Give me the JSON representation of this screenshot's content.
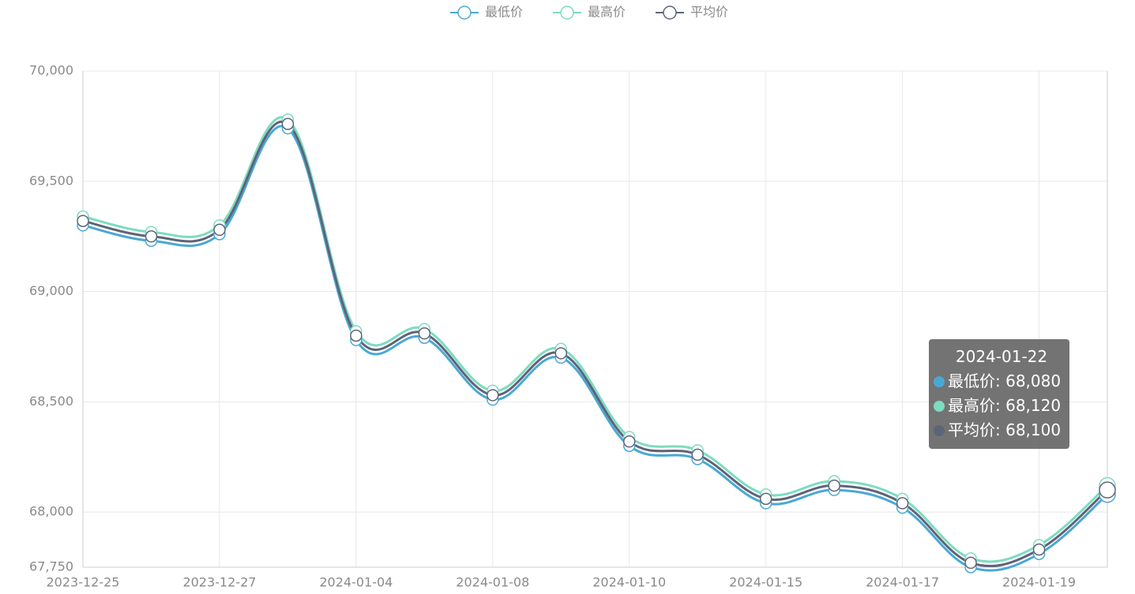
{
  "chart_data": {
    "type": "line",
    "categories": [
      "2023-12-25",
      null,
      "2023-12-27",
      null,
      "2024-01-04",
      null,
      "2024-01-08",
      null,
      "2024-01-10",
      null,
      "2024-01-15",
      null,
      "2024-01-17",
      null,
      "2024-01-19",
      null
    ],
    "series": [
      {
        "name": "最低价",
        "color": "#4aa8d4",
        "values": [
          69300,
          69230,
          69260,
          69740,
          68780,
          68790,
          68510,
          68700,
          68300,
          68240,
          68040,
          68100,
          68020,
          67750,
          67810,
          68080
        ]
      },
      {
        "name": "最高价",
        "color": "#7ddcc0",
        "values": [
          69340,
          69270,
          69300,
          69780,
          68820,
          68830,
          68550,
          68740,
          68340,
          68280,
          68080,
          68140,
          68060,
          67790,
          67850,
          68120
        ]
      },
      {
        "name": "平均价",
        "color": "#5e6478",
        "values": [
          69320,
          69250,
          69280,
          69760,
          68800,
          68810,
          68530,
          68720,
          68320,
          68260,
          68060,
          68120,
          68040,
          67770,
          67830,
          68100
        ]
      }
    ],
    "ylim": [
      67750,
      70000
    ],
    "yticks": [
      {
        "value": 67750,
        "label": "67,750"
      },
      {
        "value": 68000,
        "label": "68,000"
      },
      {
        "value": 68500,
        "label": "68,500"
      },
      {
        "value": 69000,
        "label": "69,000"
      },
      {
        "value": 69500,
        "label": "69,500"
      },
      {
        "value": 70000,
        "label": "70,000"
      }
    ],
    "grid": true,
    "legend": "top",
    "tooltip": {
      "category": "2024-01-22",
      "value_labels": [
        "68,080",
        "68,120",
        "68,100"
      ]
    }
  }
}
